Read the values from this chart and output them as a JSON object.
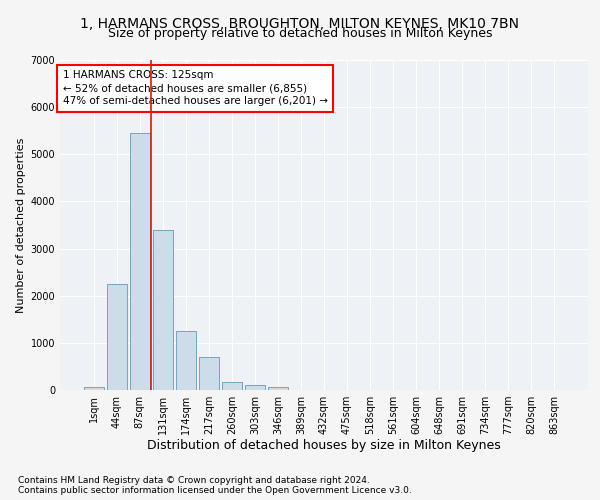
{
  "title1": "1, HARMANS CROSS, BROUGHTON, MILTON KEYNES, MK10 7BN",
  "title2": "Size of property relative to detached houses in Milton Keynes",
  "xlabel": "Distribution of detached houses by size in Milton Keynes",
  "ylabel": "Number of detached properties",
  "footer1": "Contains HM Land Registry data © Crown copyright and database right 2024.",
  "footer2": "Contains public sector information licensed under the Open Government Licence v3.0.",
  "annotation_line1": "1 HARMANS CROSS: 125sqm",
  "annotation_line2": "← 52% of detached houses are smaller (6,855)",
  "annotation_line3": "47% of semi-detached houses are larger (6,201) →",
  "bar_color": "#ccdce8",
  "bar_edge_color": "#6699bb",
  "vline_color": "#cc2200",
  "vline_position": 2.5,
  "categories": [
    "1sqm",
    "44sqm",
    "87sqm",
    "131sqm",
    "174sqm",
    "217sqm",
    "260sqm",
    "303sqm",
    "346sqm",
    "389sqm",
    "432sqm",
    "475sqm",
    "518sqm",
    "561sqm",
    "604sqm",
    "648sqm",
    "691sqm",
    "734sqm",
    "777sqm",
    "820sqm",
    "863sqm"
  ],
  "values": [
    70,
    2250,
    5450,
    3400,
    1250,
    700,
    175,
    115,
    55,
    5,
    0,
    0,
    0,
    0,
    0,
    0,
    0,
    0,
    0,
    0,
    0
  ],
  "ylim": [
    0,
    7000
  ],
  "yticks": [
    0,
    1000,
    2000,
    3000,
    4000,
    5000,
    6000,
    7000
  ],
  "background_color": "#eef2f7",
  "grid_color": "#ffffff",
  "fig_background": "#f5f5f5",
  "title1_fontsize": 10,
  "title2_fontsize": 9,
  "xlabel_fontsize": 9,
  "ylabel_fontsize": 8,
  "tick_fontsize": 7,
  "annotation_fontsize": 7.5
}
